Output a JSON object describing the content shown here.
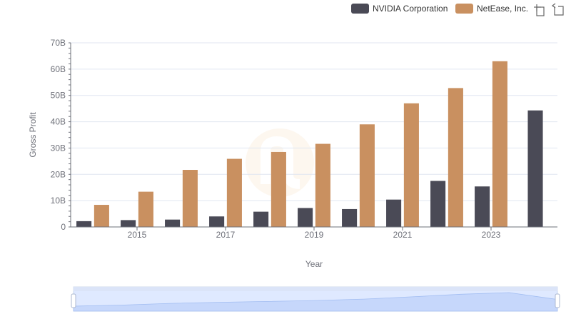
{
  "toolbar": {
    "icons": [
      "zoom-icon",
      "zoom-reset-icon"
    ]
  },
  "chart_data": {
    "type": "bar",
    "x": [
      2014,
      2015,
      2016,
      2017,
      2018,
      2019,
      2020,
      2021,
      2022,
      2023,
      2024
    ],
    "x_tick_labels": [
      "2015",
      "2017",
      "2019",
      "2021",
      "2023"
    ],
    "y_tick_labels": [
      "0",
      "10B",
      "20B",
      "30B",
      "40B",
      "50B",
      "60B",
      "70B"
    ],
    "ylim": [
      0,
      70
    ],
    "y_unit": "billions",
    "xlabel": "Year",
    "ylabel": "Gross Profit",
    "grid": true,
    "legend_position": "top-right",
    "series": [
      {
        "name": "NVIDIA Corporation",
        "color": "#4a4a56",
        "values": [
          2.2,
          2.6,
          2.8,
          4.0,
          5.8,
          7.2,
          6.8,
          10.4,
          17.5,
          15.4,
          44.3
        ]
      },
      {
        "name": "NetEase, Inc.",
        "color": "#c99060",
        "values": [
          8.4,
          13.4,
          21.7,
          25.9,
          28.5,
          31.6,
          39.0,
          47.0,
          52.8,
          63.0,
          null
        ]
      }
    ],
    "data_zoom": {
      "start": 0,
      "end": 100
    }
  }
}
